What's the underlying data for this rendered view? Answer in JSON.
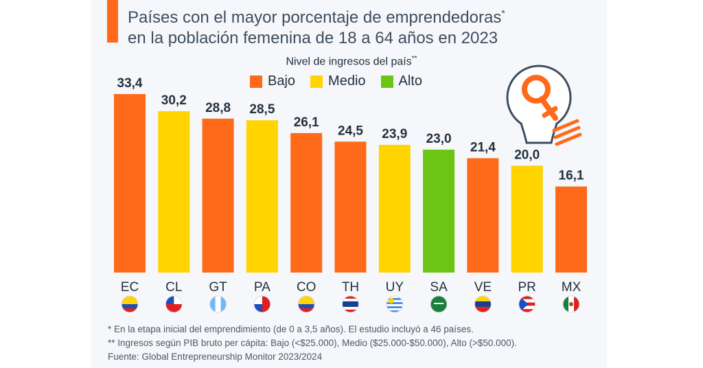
{
  "header": {
    "title_line1": "Países con el mayor porcentaje de emprendedoras",
    "title_marker": "*",
    "title_line2": "en la población femenina de 18 a 64 años en 2023"
  },
  "legend": {
    "title": "Nivel de ingresos del país",
    "title_marker": "**",
    "items": [
      {
        "key": "bajo",
        "label": "Bajo",
        "color": "#ff6a1a"
      },
      {
        "key": "medio",
        "label": "Medio",
        "color": "#ffd400"
      },
      {
        "key": "alto",
        "label": "Alto",
        "color": "#6cc414"
      }
    ]
  },
  "chart_data": {
    "type": "bar",
    "categories": [
      "EC",
      "CL",
      "GT",
      "PA",
      "CO",
      "TH",
      "UY",
      "SA",
      "VE",
      "PR",
      "MX"
    ],
    "values": [
      33.4,
      30.2,
      28.8,
      28.5,
      26.1,
      24.5,
      23.9,
      23.0,
      21.4,
      20.0,
      16.1
    ],
    "value_labels": [
      "33,4",
      "30,2",
      "28,8",
      "28,5",
      "26,1",
      "24,5",
      "23,9",
      "23,0",
      "21,4",
      "20,0",
      "16,1"
    ],
    "income_level": [
      "bajo",
      "medio",
      "bajo",
      "medio",
      "bajo",
      "bajo",
      "medio",
      "alto",
      "bajo",
      "medio",
      "bajo"
    ],
    "ylim": [
      0,
      33.4
    ],
    "grid": false
  },
  "icons": {
    "flags": [
      "ecuador-flag-icon",
      "chile-flag-icon",
      "guatemala-flag-icon",
      "panama-flag-icon",
      "colombia-flag-icon",
      "thailand-flag-icon",
      "uruguay-flag-icon",
      "saudi-arabia-flag-icon",
      "venezuela-flag-icon",
      "puerto-rico-flag-icon",
      "mexico-flag-icon"
    ],
    "illustration": "female-symbol-lightbulb-icon"
  },
  "footnotes": {
    "note1": "*   En la etapa inicial del emprendimiento (de 0 a 3,5 años). El estudio incluyó a 46 países.",
    "note2": "** Ingresos según PIB bruto per cápita: Bajo (<$25.000), Medio ($25.000-$50.000), Alto (>$50.000).",
    "source": "Fuente: Global Entrepreneurship Monitor 2023/2024"
  }
}
